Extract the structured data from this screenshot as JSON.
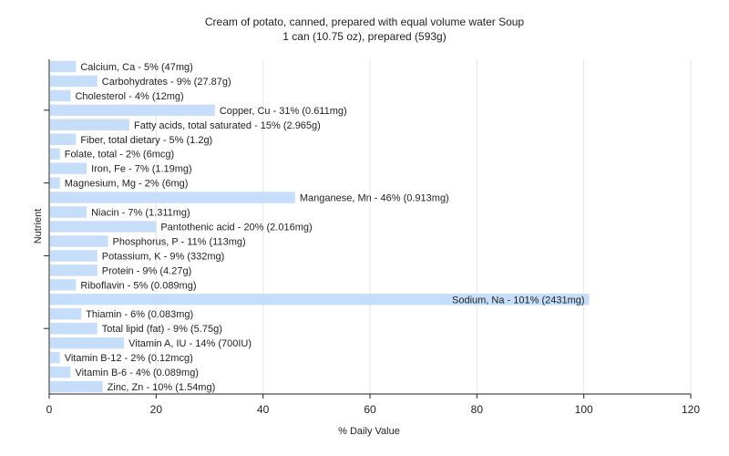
{
  "chart_data": {
    "type": "bar",
    "orientation": "horizontal",
    "title": "Cream of potato, canned, prepared with equal volume water Soup",
    "subtitle": "1 can (10.75 oz), prepared (593g)",
    "xlabel": "% Daily Value",
    "ylabel": "Nutrient",
    "xlim": [
      0,
      120
    ],
    "xticks": [
      0,
      20,
      40,
      60,
      80,
      100,
      120
    ],
    "grid": true,
    "bar_color": "#c6defa",
    "grid_color": "#e6e6e6",
    "categories": [
      "Calcium, Ca",
      "Carbohydrates",
      "Cholesterol",
      "Copper, Cu",
      "Fatty acids, total saturated",
      "Fiber, total dietary",
      "Folate, total",
      "Iron, Fe",
      "Magnesium, Mg",
      "Manganese, Mn",
      "Niacin",
      "Pantothenic acid",
      "Phosphorus, P",
      "Potassium, K",
      "Protein",
      "Riboflavin",
      "Sodium, Na",
      "Thiamin",
      "Total lipid (fat)",
      "Vitamin A, IU",
      "Vitamin B-12",
      "Vitamin B-6",
      "Zinc, Zn"
    ],
    "values": [
      5,
      9,
      4,
      31,
      15,
      5,
      2,
      7,
      2,
      46,
      7,
      20,
      11,
      9,
      9,
      5,
      101,
      6,
      9,
      14,
      2,
      4,
      10
    ],
    "labels": [
      "Calcium, Ca - 5% (47mg)",
      "Carbohydrates - 9% (27.87g)",
      "Cholesterol - 4% (12mg)",
      "Copper, Cu - 31% (0.611mg)",
      "Fatty acids, total saturated - 15% (2.965g)",
      "Fiber, total dietary - 5% (1.2g)",
      "Folate, total - 2% (6mcg)",
      "Iron, Fe - 7% (1.19mg)",
      "Magnesium, Mg - 2% (6mg)",
      "Manganese, Mn - 46% (0.913mg)",
      "Niacin - 7% (1.311mg)",
      "Pantothenic acid - 20% (2.016mg)",
      "Phosphorus, P - 11% (113mg)",
      "Potassium, K - 9% (332mg)",
      "Protein - 9% (4.27g)",
      "Riboflavin - 5% (0.089mg)",
      "Sodium, Na - 101% (2431mg)",
      "Thiamin - 6% (0.083mg)",
      "Total lipid (fat) - 9% (5.75g)",
      "Vitamin A, IU - 14% (700IU)",
      "Vitamin B-12 - 2% (0.12mcg)",
      "Vitamin B-6 - 4% (0.089mg)",
      "Zinc, Zn - 10% (1.54mg)"
    ]
  }
}
